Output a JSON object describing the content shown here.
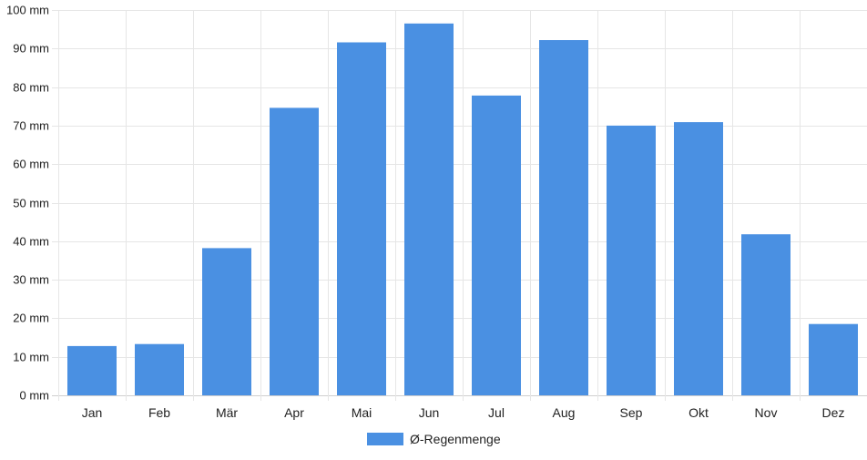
{
  "chart_data": {
    "type": "bar",
    "categories": [
      "Jan",
      "Feb",
      "Mär",
      "Apr",
      "Mai",
      "Jun",
      "Jul",
      "Aug",
      "Sep",
      "Okt",
      "Nov",
      "Dez"
    ],
    "series": [
      {
        "name": "Ø-Regenmenge",
        "values": [
          12.8,
          13.3,
          38.2,
          74.6,
          91.6,
          96.5,
          77.8,
          92.2,
          70.0,
          70.9,
          41.8,
          18.5
        ],
        "color": "#4a90e2"
      }
    ],
    "y_unit": "mm",
    "ylim": [
      0,
      100
    ],
    "ytick_step": 10,
    "grid": true,
    "legend": "bottom"
  }
}
